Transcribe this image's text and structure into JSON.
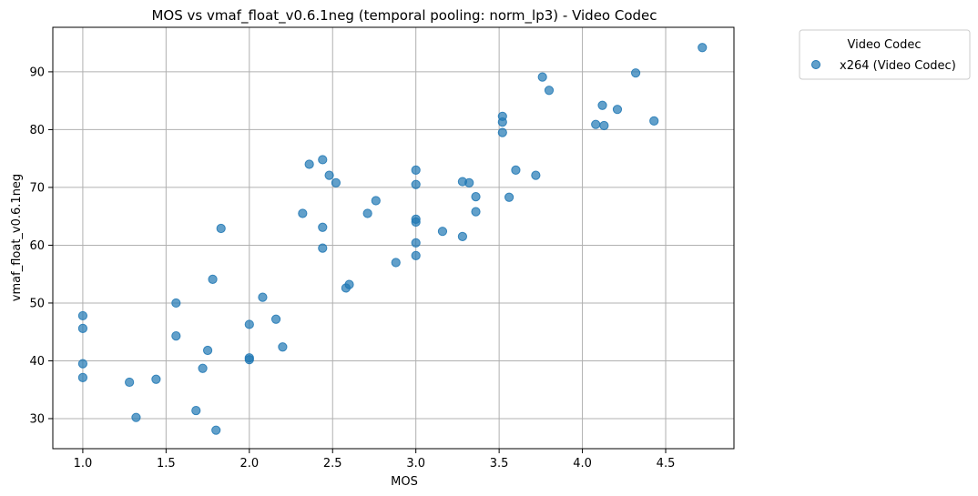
{
  "chart_data": {
    "type": "scatter",
    "title": "MOS vs vmaf_float_v0.6.1neg (temporal pooling: norm_lp3) - Video Codec",
    "xlabel": "MOS",
    "ylabel": "vmaf_float_v0.6.1neg",
    "xlim": [
      0.82,
      4.91
    ],
    "ylim": [
      24.8,
      97.7
    ],
    "xticks": [
      1.0,
      1.5,
      2.0,
      2.5,
      3.0,
      3.5,
      4.0,
      4.5
    ],
    "xtick_labels": [
      "1.0",
      "1.5",
      "2.0",
      "2.5",
      "3.0",
      "3.5",
      "4.0",
      "4.5"
    ],
    "yticks": [
      30,
      40,
      50,
      60,
      70,
      80,
      90
    ],
    "ytick_labels": [
      "30",
      "40",
      "50",
      "60",
      "70",
      "80",
      "90"
    ],
    "grid": true,
    "legend": {
      "title": "Video Codec",
      "placement": "outside-top-right",
      "entries": [
        "x264 (Video Codec)"
      ]
    },
    "series": [
      {
        "name": "x264 (Video Codec)",
        "color": "#1f77b4",
        "points": [
          [
            1.0,
            47.8
          ],
          [
            1.0,
            45.6
          ],
          [
            1.0,
            39.5
          ],
          [
            1.0,
            37.1
          ],
          [
            1.28,
            36.3
          ],
          [
            1.32,
            30.2
          ],
          [
            1.44,
            36.8
          ],
          [
            1.56,
            50.0
          ],
          [
            1.56,
            44.3
          ],
          [
            1.68,
            31.4
          ],
          [
            1.72,
            38.7
          ],
          [
            1.75,
            41.8
          ],
          [
            1.78,
            54.1
          ],
          [
            1.8,
            28.0
          ],
          [
            1.83,
            62.9
          ],
          [
            2.0,
            46.3
          ],
          [
            2.0,
            40.5
          ],
          [
            2.0,
            40.2
          ],
          [
            2.08,
            51.0
          ],
          [
            2.16,
            47.2
          ],
          [
            2.2,
            42.4
          ],
          [
            2.32,
            65.5
          ],
          [
            2.36,
            74.0
          ],
          [
            2.44,
            74.8
          ],
          [
            2.44,
            63.1
          ],
          [
            2.44,
            59.5
          ],
          [
            2.48,
            72.1
          ],
          [
            2.52,
            70.8
          ],
          [
            2.58,
            52.6
          ],
          [
            2.6,
            53.2
          ],
          [
            2.71,
            65.5
          ],
          [
            2.76,
            67.7
          ],
          [
            2.88,
            57.0
          ],
          [
            3.0,
            73.0
          ],
          [
            3.0,
            70.5
          ],
          [
            3.0,
            64.5
          ],
          [
            3.0,
            64.0
          ],
          [
            3.0,
            60.4
          ],
          [
            3.0,
            58.2
          ],
          [
            3.16,
            62.4
          ],
          [
            3.28,
            71.0
          ],
          [
            3.28,
            61.5
          ],
          [
            3.32,
            70.8
          ],
          [
            3.36,
            68.4
          ],
          [
            3.36,
            65.8
          ],
          [
            3.52,
            82.3
          ],
          [
            3.52,
            81.3
          ],
          [
            3.52,
            79.5
          ],
          [
            3.56,
            68.3
          ],
          [
            3.6,
            73.0
          ],
          [
            3.72,
            72.1
          ],
          [
            3.76,
            89.1
          ],
          [
            3.8,
            86.8
          ],
          [
            4.08,
            80.9
          ],
          [
            4.12,
            84.2
          ],
          [
            4.13,
            80.7
          ],
          [
            4.21,
            83.5
          ],
          [
            4.32,
            89.8
          ],
          [
            4.43,
            81.5
          ],
          [
            4.72,
            94.2
          ]
        ]
      }
    ]
  }
}
